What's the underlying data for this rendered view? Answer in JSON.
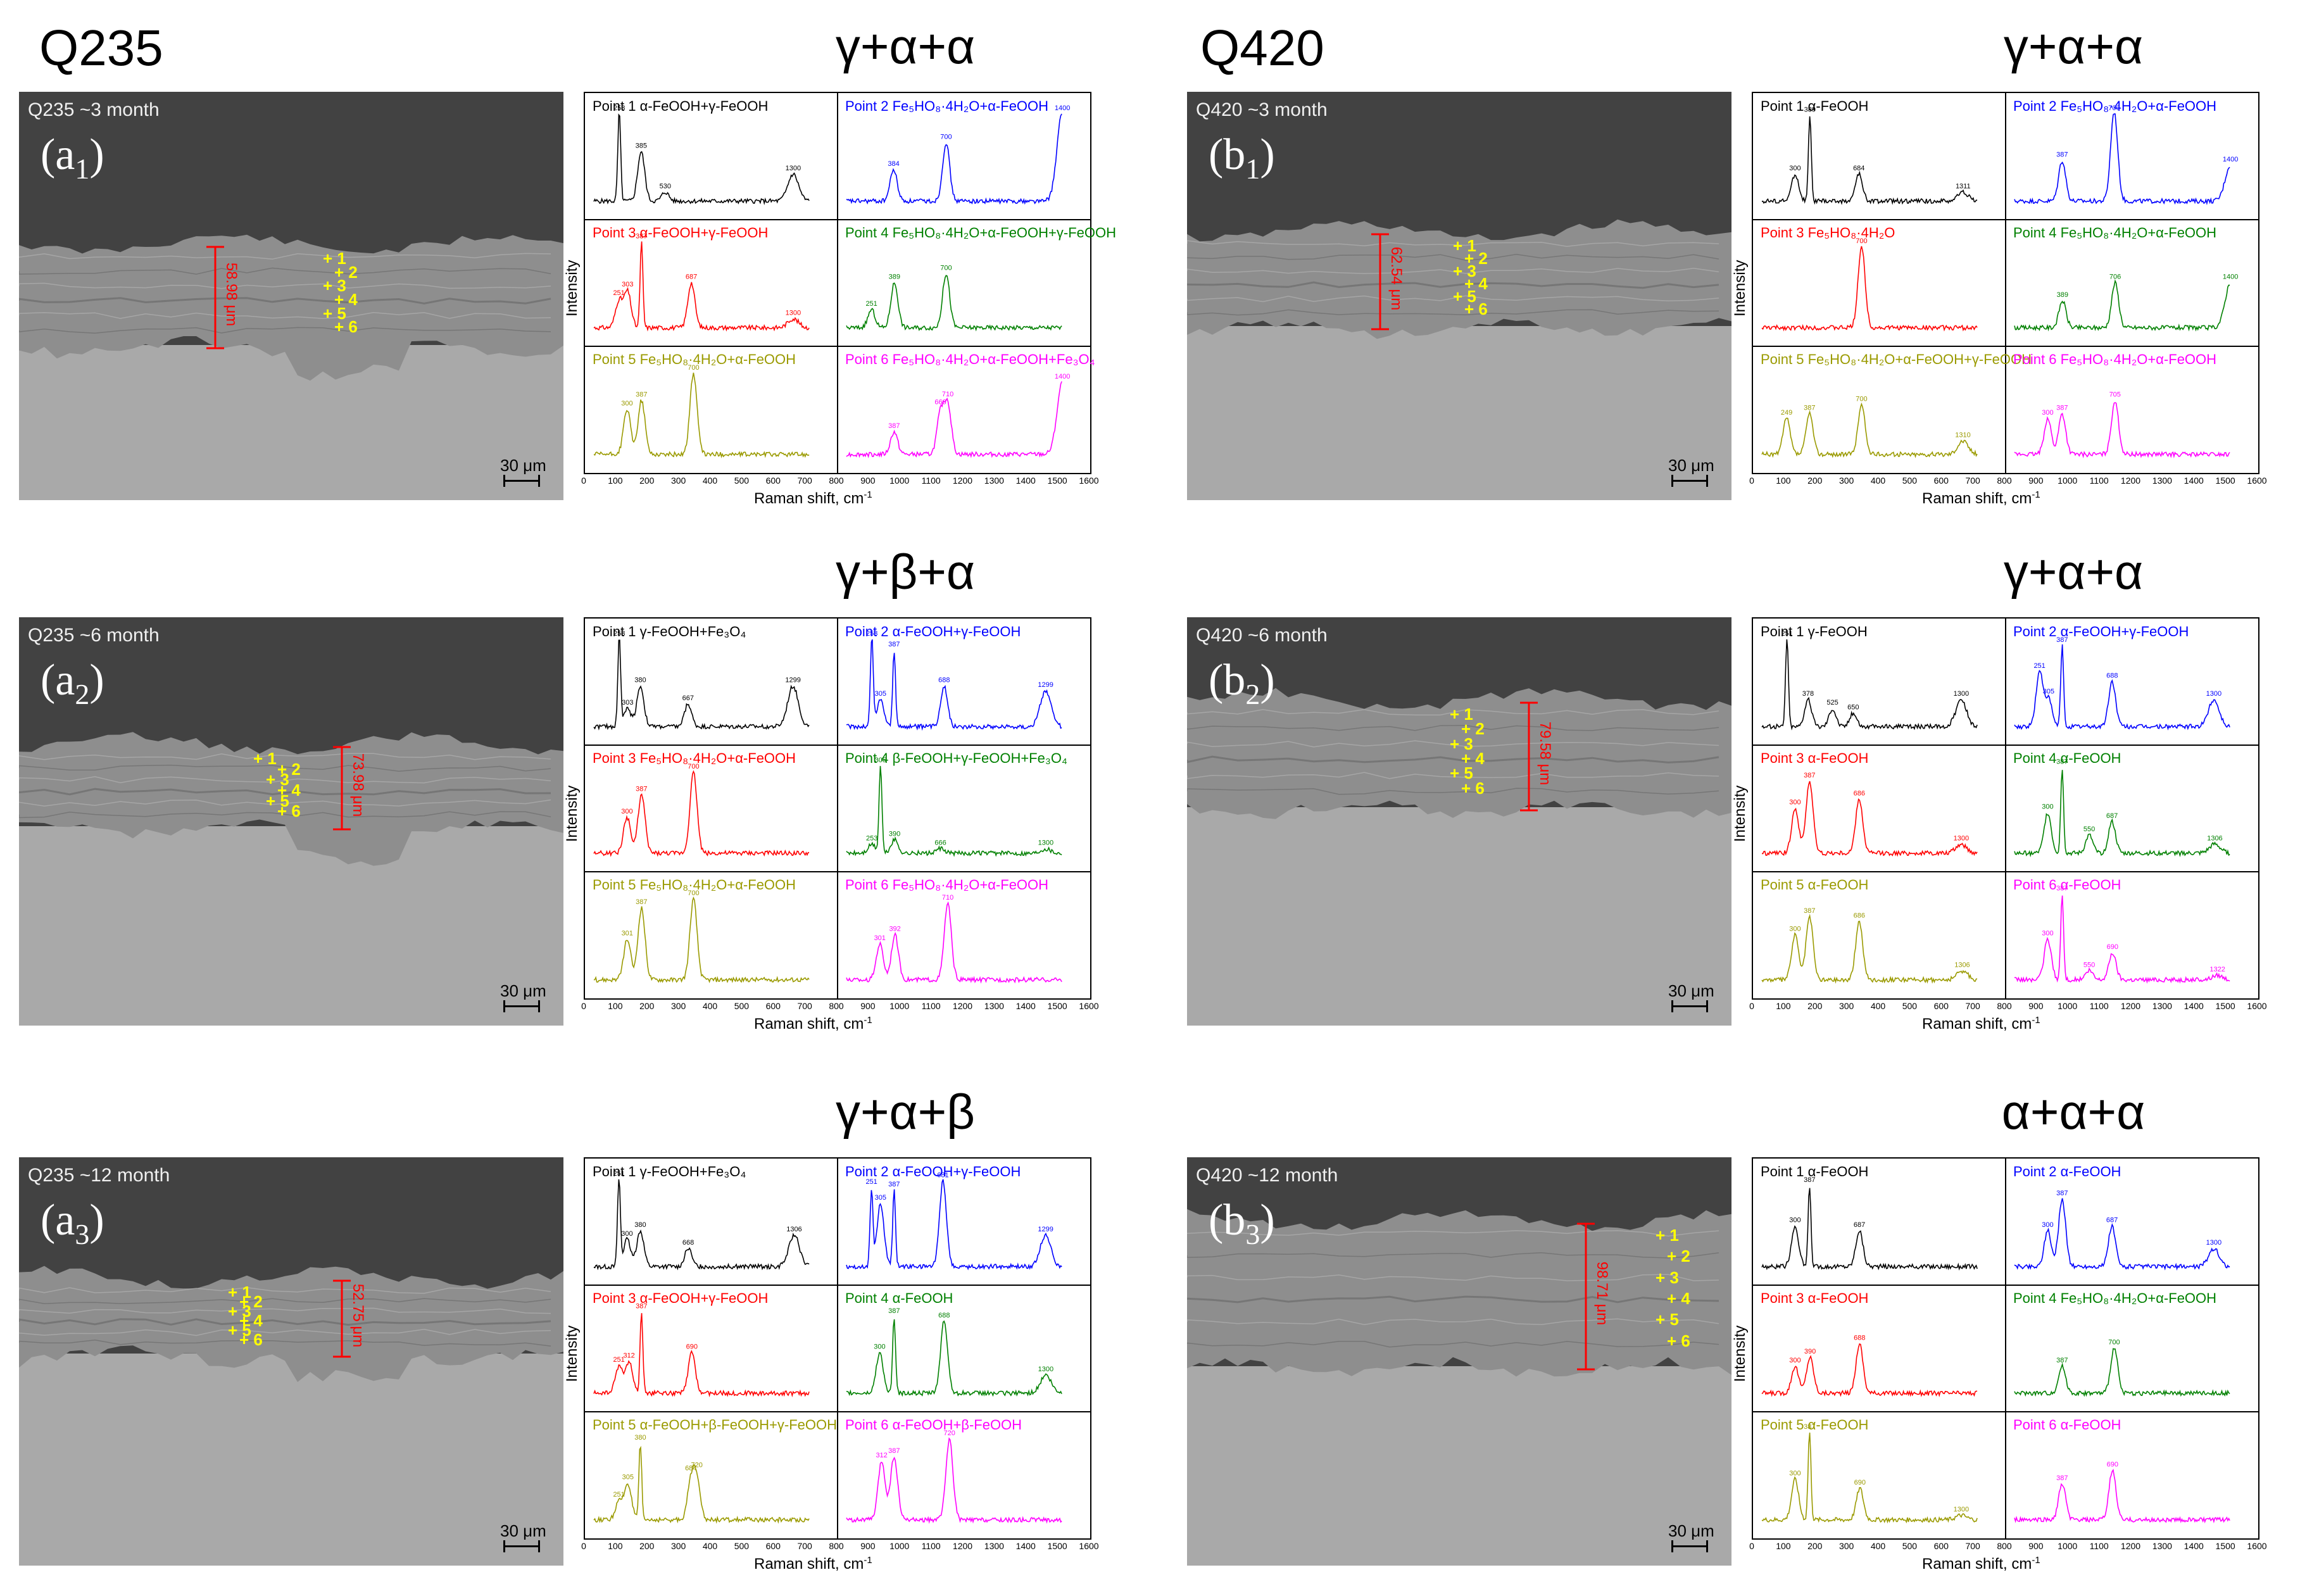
{
  "columns": [
    {
      "steel": "Q235"
    },
    {
      "steel": "Q420"
    }
  ],
  "axis": {
    "ylabel": "Intensity",
    "xlabel": "Raman shift, cm",
    "xlabel_sup": "-1",
    "ticks": [
      "0",
      "100",
      "200",
      "300",
      "400",
      "500",
      "600",
      "700",
      "800",
      "900",
      "1000",
      "1100",
      "1200",
      "1300",
      "1400",
      "1500",
      "1600"
    ]
  },
  "panels": [
    {
      "id": "a1",
      "col": 0,
      "row": 0,
      "phase": "γ+α+α",
      "time": "Q235 ~3 month",
      "label_main": "(a",
      "label_sub": "1",
      "label_end": ")",
      "thickness": "58.98 μm",
      "scale": "30 μm",
      "points": [
        "1",
        "2",
        "3",
        "4",
        "5",
        "6"
      ],
      "cells": [
        {
          "point": "Point 1",
          "formula": "α-FeOOH+γ-FeOOH",
          "color": "#000000",
          "peaks": [
            [
              253,
              1.0
            ],
            [
              385,
              0.55
            ],
            [
              530,
              0.1
            ],
            [
              1300,
              0.3
            ]
          ]
        },
        {
          "point": "Point 2",
          "formula": "Fe₅HO₈·4H₂O+α-FeOOH",
          "color": "#0000ff",
          "peaks": [
            [
              384,
              0.35
            ],
            [
              700,
              0.65
            ],
            [
              1400,
              1.0
            ]
          ]
        },
        {
          "point": "Point 3",
          "formula": "α-FeOOH+γ-FeOOH",
          "color": "#ff0000",
          "peaks": [
            [
              251,
              0.3
            ],
            [
              303,
              0.4
            ],
            [
              387,
              0.95
            ],
            [
              687,
              0.5
            ],
            [
              1300,
              0.1
            ]
          ]
        },
        {
          "point": "Point 4",
          "formula": "Fe₅HO₈·4H₂O+α-FeOOH+γ-FeOOH",
          "color": "#008000",
          "peaks": [
            [
              251,
              0.2
            ],
            [
              389,
              0.5
            ],
            [
              700,
              0.6
            ]
          ]
        },
        {
          "point": "Point 5",
          "formula": "Fe₅HO₈·4H₂O+α-FeOOH",
          "color": "#9a9a00",
          "peaks": [
            [
              300,
              0.5
            ],
            [
              387,
              0.6
            ],
            [
              700,
              0.9
            ]
          ]
        },
        {
          "point": "Point 6",
          "formula": "Fe₅HO₈·4H₂O+α-FeOOH+Fe₃O₄",
          "color": "#ff00ff",
          "peaks": [
            [
              387,
              0.25
            ],
            [
              666,
              0.45
            ],
            [
              710,
              0.55
            ],
            [
              1400,
              0.8
            ]
          ]
        }
      ]
    },
    {
      "id": "b1",
      "col": 1,
      "row": 0,
      "phase": "γ+α+α",
      "time": "Q420 ~3 month",
      "label_main": "(b",
      "label_sub": "1",
      "label_end": ")",
      "thickness": "62.54 μm",
      "scale": "30 μm",
      "points": [
        "1",
        "2",
        "3",
        "4",
        "5",
        "6"
      ],
      "cells": [
        {
          "point": "Point 1",
          "formula": "α-FeOOH",
          "color": "#000000",
          "peaks": [
            [
              300,
              0.3
            ],
            [
              389,
              0.95
            ],
            [
              684,
              0.3
            ],
            [
              1311,
              0.1
            ]
          ]
        },
        {
          "point": "Point 2",
          "formula": "Fe₅HO₈·4H₂O+α-FeOOH",
          "color": "#0000ff",
          "peaks": [
            [
              387,
              0.45
            ],
            [
              700,
              1.0
            ],
            [
              1400,
              0.4
            ]
          ]
        },
        {
          "point": "Point 3",
          "formula": "Fe₅HO₈·4H₂O",
          "color": "#ff0000",
          "peaks": [
            [
              700,
              0.9
            ]
          ]
        },
        {
          "point": "Point 4",
          "formula": "Fe₅HO₈·4H₂O+α-FeOOH",
          "color": "#008000",
          "peaks": [
            [
              389,
              0.3
            ],
            [
              706,
              0.5
            ],
            [
              1400,
              0.5
            ]
          ]
        },
        {
          "point": "Point 5",
          "formula": "Fe₅HO₈·4H₂O+α-FeOOH+γ-FeOOH",
          "color": "#9a9a00",
          "peaks": [
            [
              249,
              0.4
            ],
            [
              387,
              0.45
            ],
            [
              700,
              0.55
            ],
            [
              1310,
              0.15
            ]
          ]
        },
        {
          "point": "Point 6",
          "formula": "Fe₅HO₈·4H₂O+α-FeOOH",
          "color": "#ff00ff",
          "peaks": [
            [
              300,
              0.4
            ],
            [
              387,
              0.45
            ],
            [
              705,
              0.6
            ]
          ]
        }
      ]
    },
    {
      "id": "a2",
      "col": 0,
      "row": 1,
      "phase": "γ+β+α",
      "time": "Q235 ~6 month",
      "label_main": "(a",
      "label_sub": "2",
      "label_end": ")",
      "thickness": "73.98 μm",
      "scale": "30 μm",
      "points": [
        "1",
        "2",
        "3",
        "4",
        "5",
        "6"
      ],
      "cells": [
        {
          "point": "Point 1",
          "formula": "γ-FeOOH+Fe₃O₄",
          "color": "#000000",
          "peaks": [
            [
              253,
              1.0
            ],
            [
              303,
              0.2
            ],
            [
              380,
              0.45
            ],
            [
              667,
              0.25
            ],
            [
              1299,
              0.45
            ]
          ]
        },
        {
          "point": "Point 2",
          "formula": "α-FeOOH+γ-FeOOH",
          "color": "#0000ff",
          "peaks": [
            [
              253,
              1.0
            ],
            [
              305,
              0.3
            ],
            [
              387,
              0.85
            ],
            [
              688,
              0.45
            ],
            [
              1299,
              0.4
            ]
          ]
        },
        {
          "point": "Point 3",
          "formula": "Fe₅HO₈·4H₂O+α-FeOOH",
          "color": "#ff0000",
          "peaks": [
            [
              300,
              0.4
            ],
            [
              387,
              0.65
            ],
            [
              700,
              0.9
            ]
          ]
        },
        {
          "point": "Point 4",
          "formula": "β-FeOOH+γ-FeOOH+Fe₃O₄",
          "color": "#008000",
          "peaks": [
            [
              253,
              0.1
            ],
            [
              305,
              1.0
            ],
            [
              390,
              0.15
            ],
            [
              666,
              0.05
            ],
            [
              1300,
              0.05
            ]
          ]
        },
        {
          "point": "Point 5",
          "formula": "Fe₅HO₈·4H₂O+α-FeOOH",
          "color": "#9a9a00",
          "peaks": [
            [
              301,
              0.45
            ],
            [
              387,
              0.8
            ],
            [
              700,
              0.9
            ]
          ]
        },
        {
          "point": "Point 6",
          "formula": "Fe₅HO₈·4H₂O+α-FeOOH",
          "color": "#ff00ff",
          "peaks": [
            [
              301,
              0.4
            ],
            [
              392,
              0.5
            ],
            [
              710,
              0.85
            ]
          ]
        }
      ]
    },
    {
      "id": "b2",
      "col": 1,
      "row": 1,
      "phase": "γ+α+α",
      "time": "Q420 ~6 month",
      "label_main": "(b",
      "label_sub": "2",
      "label_end": ")",
      "thickness": "79.58 μm",
      "scale": "30 μm",
      "points": [
        "1",
        "2",
        "3",
        "4",
        "5",
        "6"
      ],
      "cells": [
        {
          "point": "Point 1",
          "formula": "γ-FeOOH",
          "color": "#000000",
          "peaks": [
            [
              251,
              1.0
            ],
            [
              378,
              0.3
            ],
            [
              525,
              0.2
            ],
            [
              650,
              0.15
            ],
            [
              1300,
              0.3
            ]
          ]
        },
        {
          "point": "Point 2",
          "formula": "α-FeOOH+γ-FeOOH",
          "color": "#0000ff",
          "peaks": [
            [
              251,
              0.6
            ],
            [
              305,
              0.3
            ],
            [
              387,
              0.9
            ],
            [
              688,
              0.5
            ],
            [
              1300,
              0.3
            ]
          ]
        },
        {
          "point": "Point 3",
          "formula": "α-FeOOH",
          "color": "#ff0000",
          "peaks": [
            [
              300,
              0.5
            ],
            [
              387,
              0.8
            ],
            [
              686,
              0.6
            ],
            [
              1300,
              0.1
            ]
          ]
        },
        {
          "point": "Point 4",
          "formula": "α-FeOOH",
          "color": "#008000",
          "peaks": [
            [
              300,
              0.45
            ],
            [
              387,
              0.95
            ],
            [
              550,
              0.2
            ],
            [
              687,
              0.35
            ],
            [
              1306,
              0.1
            ]
          ]
        },
        {
          "point": "Point 5",
          "formula": "α-FeOOH",
          "color": "#9a9a00",
          "peaks": [
            [
              300,
              0.5
            ],
            [
              387,
              0.7
            ],
            [
              686,
              0.65
            ],
            [
              1306,
              0.1
            ]
          ]
        },
        {
          "point": "Point 6",
          "formula": "α-FeOOH",
          "color": "#ff00ff",
          "peaks": [
            [
              300,
              0.45
            ],
            [
              387,
              0.95
            ],
            [
              550,
              0.1
            ],
            [
              690,
              0.3
            ],
            [
              1322,
              0.05
            ]
          ]
        }
      ]
    },
    {
      "id": "a3",
      "col": 0,
      "row": 2,
      "phase": "γ+α+β",
      "time": "Q235 ~12 month",
      "label_main": "(a",
      "label_sub": "3",
      "label_end": ")",
      "thickness": "52.75 μm",
      "scale": "30 μm",
      "points": [
        "1",
        "2",
        "3",
        "4",
        "5",
        "6"
      ],
      "cells": [
        {
          "point": "Point 1",
          "formula": "γ-FeOOH+Fe₃O₄",
          "color": "#000000",
          "peaks": [
            [
              251,
              1.0
            ],
            [
              300,
              0.3
            ],
            [
              380,
              0.4
            ],
            [
              668,
              0.2
            ],
            [
              1306,
              0.35
            ]
          ]
        },
        {
          "point": "Point 2",
          "formula": "α-FeOOH+γ-FeOOH",
          "color": "#0000ff",
          "peaks": [
            [
              251,
              0.85
            ],
            [
              305,
              0.7
            ],
            [
              387,
              0.85
            ],
            [
              681,
              0.95
            ],
            [
              1299,
              0.35
            ]
          ]
        },
        {
          "point": "Point 3",
          "formula": "α-FeOOH+γ-FeOOH",
          "color": "#ff0000",
          "peaks": [
            [
              251,
              0.3
            ],
            [
              312,
              0.35
            ],
            [
              387,
              0.9
            ],
            [
              690,
              0.45
            ]
          ]
        },
        {
          "point": "Point 4",
          "formula": "α-FeOOH",
          "color": "#008000",
          "peaks": [
            [
              300,
              0.45
            ],
            [
              387,
              0.85
            ],
            [
              688,
              0.8
            ],
            [
              1300,
              0.2
            ]
          ]
        },
        {
          "point": "Point 5",
          "formula": "α-FeOOH+β-FeOOH+γ-FeOOH",
          "color": "#9a9a00",
          "peaks": [
            [
              251,
              0.2
            ],
            [
              305,
              0.4
            ],
            [
              380,
              0.85
            ],
            [
              684,
              0.4
            ],
            [
              720,
              0.45
            ]
          ]
        },
        {
          "point": "Point 6",
          "formula": "α-FeOOH+β-FeOOH",
          "color": "#ff00ff",
          "peaks": [
            [
              312,
              0.65
            ],
            [
              387,
              0.7
            ],
            [
              720,
              0.9
            ]
          ]
        }
      ]
    },
    {
      "id": "b3",
      "col": 1,
      "row": 2,
      "phase": "α+α+α",
      "time": "Q420 ~12 month",
      "label_main": "(b",
      "label_sub": "3",
      "label_end": ")",
      "thickness": "98.71 μm",
      "scale": "30 μm",
      "points": [
        "1",
        "2",
        "3",
        "4",
        "5",
        "6"
      ],
      "cells": [
        {
          "point": "Point 1",
          "formula": "α-FeOOH",
          "color": "#000000",
          "peaks": [
            [
              300,
              0.45
            ],
            [
              387,
              0.9
            ],
            [
              687,
              0.4
            ]
          ]
        },
        {
          "point": "Point 2",
          "formula": "α-FeOOH",
          "color": "#0000ff",
          "peaks": [
            [
              300,
              0.4
            ],
            [
              387,
              0.75
            ],
            [
              687,
              0.45
            ],
            [
              1300,
              0.2
            ]
          ]
        },
        {
          "point": "Point 3",
          "formula": "α-FeOOH",
          "color": "#ff0000",
          "peaks": [
            [
              300,
              0.3
            ],
            [
              390,
              0.4
            ],
            [
              688,
              0.55
            ]
          ]
        },
        {
          "point": "Point 4",
          "formula": "Fe₅HO₈·4H₂O+α-FeOOH",
          "color": "#008000",
          "peaks": [
            [
              387,
              0.3
            ],
            [
              700,
              0.5
            ]
          ]
        },
        {
          "point": "Point 5",
          "formula": "α-FeOOH",
          "color": "#9a9a00",
          "peaks": [
            [
              300,
              0.45
            ],
            [
              387,
              1.0
            ],
            [
              690,
              0.35
            ],
            [
              1300,
              0.05
            ]
          ]
        },
        {
          "point": "Point 6",
          "formula": "α-FeOOH",
          "color": "#ff00ff",
          "peaks": [
            [
              387,
              0.4
            ],
            [
              690,
              0.55
            ]
          ]
        }
      ]
    }
  ]
}
